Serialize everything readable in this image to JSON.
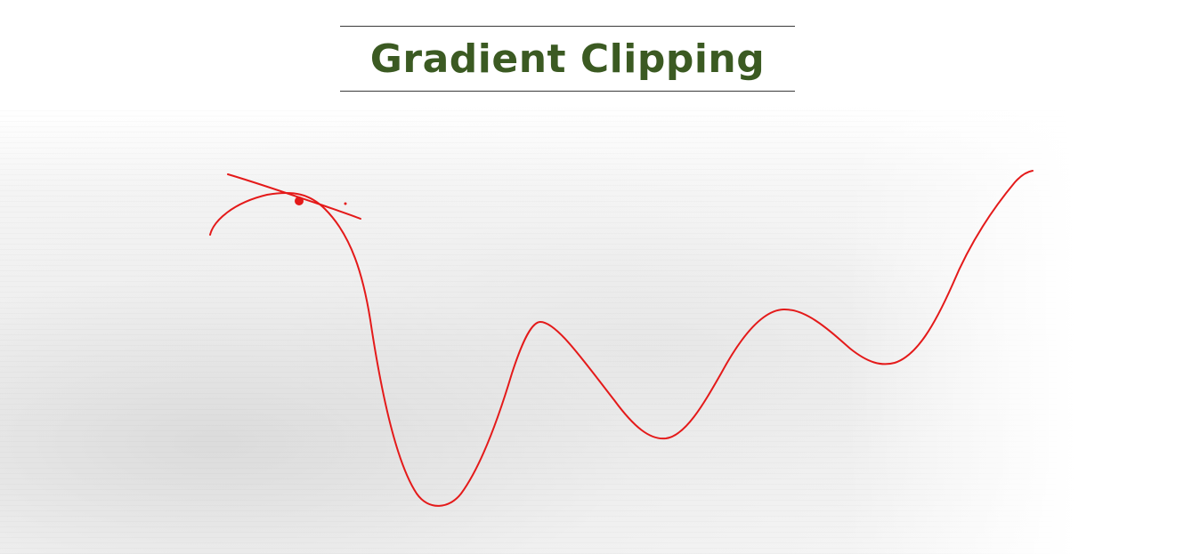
{
  "slide": {
    "title": "Gradient Clipping"
  },
  "colors": {
    "title": "#3b5a22",
    "curve": "#e41a1a",
    "rule": "#3a3a3a"
  },
  "icons": {
    "point": "red-dot-marker",
    "tangent": "tangent-line-stroke"
  }
}
